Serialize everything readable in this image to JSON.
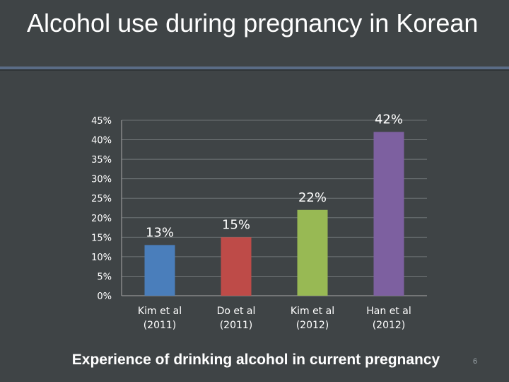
{
  "slide": {
    "title": "Alcohol use during pregnancy in Korean",
    "caption": "Experience of drinking alcohol in current pregnancy",
    "page_number": "6"
  },
  "chart_data": {
    "type": "bar",
    "categories": [
      [
        "Kim et al",
        "(2011)"
      ],
      [
        "Do et al",
        "(2011)"
      ],
      [
        "Kim et al",
        "(2012)"
      ],
      [
        "Han et al",
        "(2012)"
      ]
    ],
    "values": [
      13,
      15,
      22,
      42
    ],
    "data_labels": [
      "13%",
      "15%",
      "22%",
      "42%"
    ],
    "bar_colors": [
      "#4a7ebb",
      "#be4b48",
      "#98b954",
      "#7d60a0"
    ],
    "y_ticks": [
      "0%",
      "5%",
      "10%",
      "15%",
      "20%",
      "25%",
      "30%",
      "35%",
      "40%",
      "45%"
    ],
    "ylim": [
      0,
      45
    ],
    "grid": true,
    "legend": "none",
    "title": "",
    "xlabel": "",
    "ylabel": ""
  }
}
